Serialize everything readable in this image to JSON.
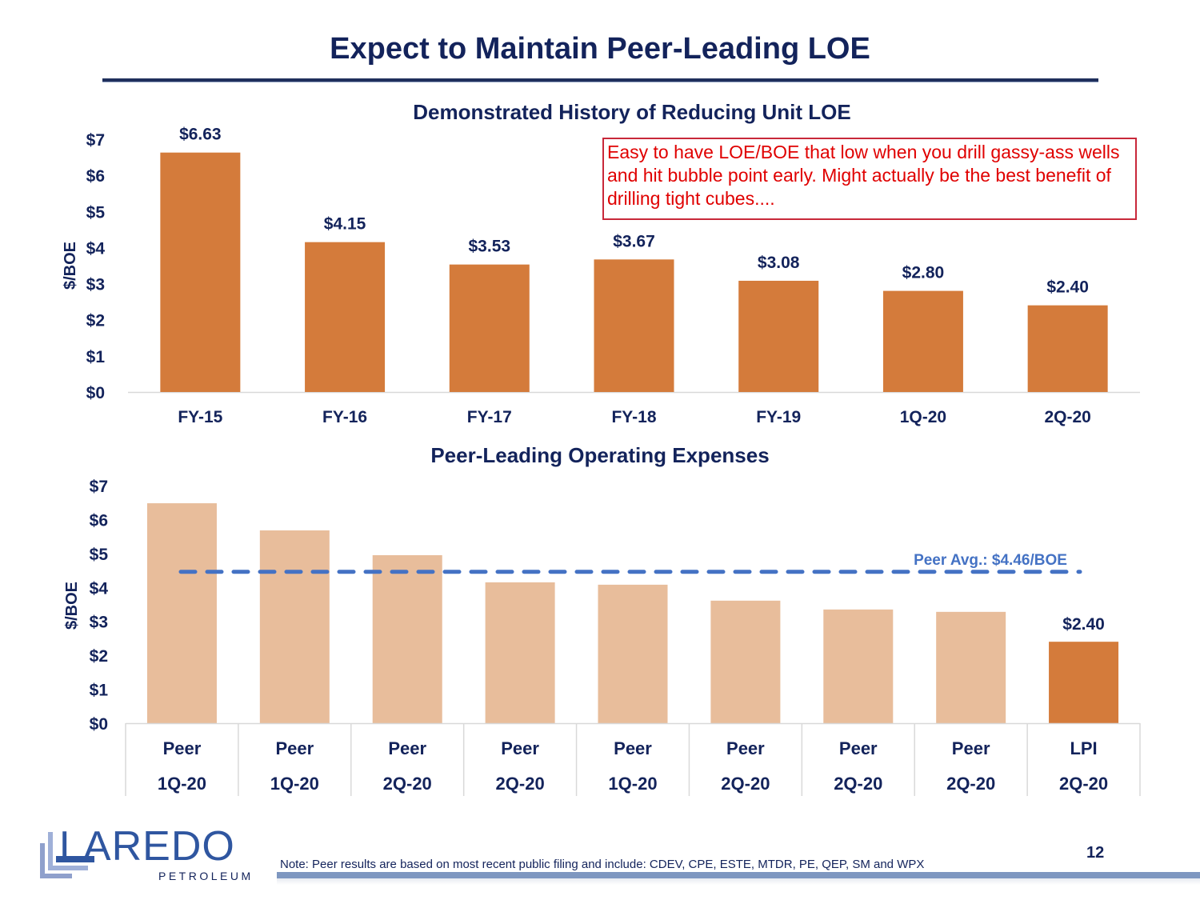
{
  "slide": {
    "title": "Expect to Maintain Peer-Leading LOE",
    "page_number": "12",
    "footer_note": "Note: Peer results are based on most recent public filing and include: CDEV, CPE, ESTE, MTDR, PE, QEP, SM and WPX",
    "annotation": "Easy to have LOE/BOE that low when you drill gassy-ass wells and hit bubble point early. Might actually be the best benefit of drilling tight cubes....",
    "logo": {
      "name": "LAREDO",
      "sub": "PETROLEUM"
    }
  },
  "colors": {
    "navy": "#13235b",
    "orange": "#d47b3b",
    "light_orange": "#e8bd9b",
    "peer_avg_blue": "#4472c4",
    "annotation_red": "#e00000",
    "logo_blue": "#2f56a0"
  },
  "chart_data": [
    {
      "type": "bar",
      "title": "Demonstrated History of Reducing Unit LOE",
      "xlabel": "",
      "ylabel": "$/BOE",
      "ylim": [
        0,
        7
      ],
      "yticks": [
        "$0",
        "$1",
        "$2",
        "$3",
        "$4",
        "$5",
        "$6",
        "$7"
      ],
      "grid": false,
      "categories": [
        "FY-15",
        "FY-16",
        "FY-17",
        "FY-18",
        "FY-19",
        "1Q-20",
        "2Q-20"
      ],
      "values": [
        6.63,
        4.15,
        3.53,
        3.67,
        3.08,
        2.8,
        2.4
      ],
      "data_labels": [
        "$6.63",
        "$4.15",
        "$3.53",
        "$3.67",
        "$3.08",
        "$2.80",
        "$2.40"
      ]
    },
    {
      "type": "bar",
      "title": "Peer-Leading Operating Expenses",
      "xlabel": "",
      "ylabel": "$/BOE",
      "ylim": [
        0,
        7
      ],
      "yticks": [
        "$0",
        "$1",
        "$2",
        "$3",
        "$4",
        "$5",
        "$6",
        "$7"
      ],
      "grid": false,
      "categories": [
        [
          "Peer",
          "1Q-20"
        ],
        [
          "Peer",
          "1Q-20"
        ],
        [
          "Peer",
          "2Q-20"
        ],
        [
          "Peer",
          "2Q-20"
        ],
        [
          "Peer",
          "1Q-20"
        ],
        [
          "Peer",
          "2Q-20"
        ],
        [
          "Peer",
          "2Q-20"
        ],
        [
          "Peer",
          "2Q-20"
        ],
        [
          "LPI",
          "2Q-20"
        ]
      ],
      "values": [
        6.48,
        5.68,
        4.95,
        4.15,
        4.08,
        3.61,
        3.35,
        3.28,
        2.4
      ],
      "highlight": [
        false,
        false,
        false,
        false,
        false,
        false,
        false,
        false,
        true
      ],
      "data_labels": [
        "",
        "",
        "",
        "",
        "",
        "",
        "",
        "",
        "$2.40"
      ],
      "reference_line": {
        "value": 4.46,
        "label": "Peer Avg.: $4.46/BOE",
        "style": "dashed"
      }
    }
  ]
}
